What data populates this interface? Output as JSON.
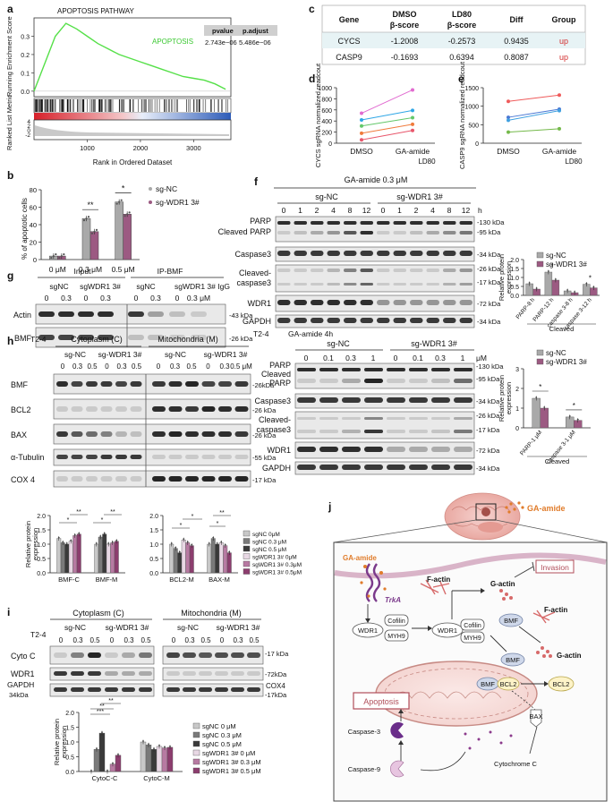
{
  "panels": {
    "a": {
      "label": "a",
      "title": "APOPTOSIS PATHWAY",
      "ylabel_top": "Running Enrichment Score",
      "ylabel_bottom": "Ranked List Metric",
      "xlabel": "Rank in Ordered Dataset",
      "series_name": "APOPTOSIS",
      "yticks_top": [
        "0.3",
        "0.2",
        "0.1",
        "0.0"
      ],
      "yticks_bottom": [
        "4",
        "2",
        "0",
        "-2"
      ],
      "xticks": [
        "1000",
        "2000",
        "3000"
      ],
      "table_headers": [
        "pvalue",
        "p.adjust"
      ],
      "table_values": [
        "2.743e−06",
        "5.486e−06"
      ],
      "chart_data": {
        "type": "line",
        "x": [
          0,
          200,
          400,
          600,
          800,
          1000,
          1200,
          1400,
          1600,
          1800,
          2000,
          2200,
          2400,
          2600,
          2800,
          3000,
          3200,
          3400,
          3600
        ],
        "y": [
          0.0,
          0.15,
          0.3,
          0.37,
          0.34,
          0.3,
          0.26,
          0.23,
          0.2,
          0.18,
          0.16,
          0.14,
          0.12,
          0.1,
          0.08,
          0.07,
          0.06,
          0.04,
          0.01
        ],
        "ylim": [
          -0.03,
          0.4
        ]
      }
    },
    "b": {
      "label": "b",
      "ylabel": "% of apoptotic cells",
      "legend": [
        "sg-NC",
        "sg-WDR1 3#"
      ],
      "colors": [
        "#a9a9a9",
        "#9c5a82"
      ],
      "chart_data": {
        "type": "bar",
        "categories": [
          "0 μM",
          "0.3 μM",
          "0.5 μM"
        ],
        "series": [
          {
            "name": "sg-NC",
            "values": [
              4,
              47,
              66
            ]
          },
          {
            "name": "sg-WDR1 3#",
            "values": [
              4,
              32,
              52
            ]
          }
        ],
        "ylim": [
          0,
          80
        ],
        "yticks": [
          "0",
          "20",
          "40",
          "60",
          "80"
        ],
        "significance": [
          "**",
          "*"
        ]
      }
    },
    "c": {
      "label": "c",
      "headers": [
        "Gene",
        "DMSO β-score",
        "LD80 β-score",
        "Diff",
        "Group"
      ],
      "rows": [
        [
          "CYCS",
          "-1.2008",
          "-0.2573",
          "0.9435",
          "up"
        ],
        [
          "CASP9",
          "-0.1693",
          "0.6394",
          "0.8087",
          "up"
        ]
      ]
    },
    "d": {
      "label": "d",
      "ylabel": "CYCS sgRNA normalized readcout",
      "categories": [
        "DMSO",
        "GA-amide"
      ],
      "group_label": "LD80",
      "chart_data": {
        "type": "line",
        "categories": [
          "DMSO",
          "GA-amide"
        ],
        "series": [
          {
            "values": [
              540,
              960
            ]
          },
          {
            "values": [
              420,
              590
            ]
          },
          {
            "values": [
              310,
              460
            ]
          },
          {
            "values": [
              180,
              340
            ]
          },
          {
            "values": [
              60,
              230
            ]
          }
        ],
        "ylim": [
          0,
          1000
        ],
        "yticks": [
          "0",
          "200",
          "400",
          "600",
          "800",
          "1000"
        ]
      }
    },
    "e": {
      "label": "e",
      "ylabel": "CASP9 sgRNA normalized readcout",
      "categories": [
        "DMSO",
        "GA-amide"
      ],
      "group_label": "LD80",
      "chart_data": {
        "type": "line",
        "categories": [
          "DMSO",
          "GA-amide"
        ],
        "series": [
          {
            "values": [
              1130,
              1300
            ]
          },
          {
            "values": [
              700,
              920
            ]
          },
          {
            "values": [
              620,
              880
            ]
          },
          {
            "values": [
              300,
              390
            ]
          }
        ],
        "ylim": [
          0,
          1500
        ],
        "yticks": [
          "0",
          "500",
          "1000",
          "1500"
        ]
      }
    },
    "f": {
      "label": "f",
      "treatment": "GA-amide 0.3 μM",
      "groups": [
        "sg-NC",
        "sg-WDR1 3#"
      ],
      "time_points": [
        "0",
        "1",
        "2",
        "4",
        "8",
        "12",
        "0",
        "1",
        "2",
        "4",
        "8",
        "12"
      ],
      "time_unit": "h",
      "rows": [
        "PARP",
        "Cleaved PARP",
        "Caspase3",
        "Cleaved-caspase3",
        "WDR1",
        "GAPDH"
      ],
      "kda": [
        "130 kDa",
        "95 kDa",
        "34 kDa",
        "26 kDa",
        "17 kDa",
        "72 kDa",
        "34 kDa"
      ],
      "ylabel": "Relative protein expression",
      "legend": [
        "sg-NC",
        "sg-WDR1 3#"
      ],
      "group_label": "Cleaved",
      "chart_data": {
        "type": "bar",
        "categories": [
          "PARP-8 h",
          "PARP-12 h",
          "caspase 3-8 h",
          "caspase 3-12 h"
        ],
        "series": [
          {
            "name": "sg-NC",
            "values": [
              0.65,
              1.3,
              0.25,
              0.62
            ]
          },
          {
            "name": "sg-WDR1 3#",
            "values": [
              0.35,
              0.85,
              0.15,
              0.42
            ]
          }
        ],
        "ylim": [
          0,
          2
        ],
        "yticks": [
          "0.0",
          "0.5",
          "1.0",
          "1.5",
          "2.0"
        ],
        "significance": [
          "*",
          "*"
        ]
      }
    },
    "f2": {
      "cell_line": "T2-4",
      "treatment": "GA-amide 4h",
      "groups": [
        "sg-NC",
        "sg-WDR1 3#"
      ],
      "doses": [
        "0",
        "0.1",
        "0.3",
        "1",
        "0",
        "0.1",
        "0.3",
        "1"
      ],
      "dose_unit": "μM",
      "rows": [
        "PARP",
        "Cleaved PARP",
        "Caspase3",
        "Cleaved-caspase3",
        "WDR1",
        "GAPDH"
      ],
      "kda": [
        "130 kDa",
        "95 kDa",
        "34 kDa",
        "26 kDa",
        "17 kDa",
        "72 kDa",
        "34 kDa"
      ],
      "ylabel": "Relative protein expression",
      "legend": [
        "sg-NC",
        "sg-WDR1 3#"
      ],
      "group_label": "Cleaved",
      "chart_data": {
        "type": "bar",
        "categories": [
          "PARP-1 μM",
          "caspase 3-1 μM"
        ],
        "series": [
          {
            "name": "sg-NC",
            "values": [
              1.5,
              0.55
            ]
          },
          {
            "name": "sg-WDR1 3#",
            "values": [
              1.0,
              0.38
            ]
          }
        ],
        "ylim": [
          0,
          3
        ],
        "yticks": [
          "0",
          "1",
          "2",
          "3"
        ],
        "significance": [
          "*",
          "*"
        ]
      }
    },
    "g": {
      "label": "g",
      "headers": [
        "Input",
        "IP-BMF"
      ],
      "lanes_groups": [
        "sgNC",
        "sgWDR1 3#",
        "sgNC",
        "sgWDR1 3# IgG"
      ],
      "doses": [
        "0",
        "0.3",
        "0",
        "0.3",
        "0",
        "0.3",
        "0",
        "0.3 μM"
      ],
      "rows": [
        "Actin",
        "BMF"
      ],
      "kda": [
        "43 kDa",
        "26 kDa"
      ]
    },
    "h": {
      "label": "h",
      "cell_line": "T2-4",
      "compartments": [
        "Cytoplasm (C)",
        "Mitochondria (M)"
      ],
      "groups": [
        "sg-NC",
        "sg-WDR1 3#",
        "sg-NC",
        "sg-WDR1 3#"
      ],
      "doses": [
        "0",
        "0.3",
        "0.5",
        "0",
        "0.3",
        "0.5",
        "0",
        "0.3",
        "0.5",
        "0",
        "0.3",
        "0.5 μM"
      ],
      "rows": [
        "BMF",
        "BCL2",
        "BAX",
        "α-Tubulin",
        "COX 4"
      ],
      "kda": [
        "26kDa",
        "26 kDa",
        "26 kDa",
        "55 kDa",
        "17 kDa"
      ],
      "ylabel": "Relative protein expression",
      "legend": [
        "sgNC 0μM",
        "sgNC 0.3 μM",
        "sgNC 0.5 μM",
        "sgWDR1 3# 0μM",
        "sgWDR1 3# 0.3μM",
        "sgWDR1 3# 0.5μM"
      ],
      "colors": [
        "#c8c8c8",
        "#7a7a7a",
        "#3a3a3a",
        "#e8d8e4",
        "#b77aa2",
        "#8c3d6e"
      ],
      "chart_data": [
        {
          "type": "bar",
          "categories": [
            "BMF-C",
            "BMF-M"
          ],
          "series": [
            {
              "name": "sgNC 0μM",
              "values": [
                1.2,
                1.0
              ]
            },
            {
              "name": "sgNC 0.3 μM",
              "values": [
                1.05,
                1.25
              ]
            },
            {
              "name": "sgNC 0.5 μM",
              "values": [
                1.0,
                1.35
              ]
            },
            {
              "name": "sgWDR1 3# 0μM",
              "values": [
                1.1,
                1.0
              ]
            },
            {
              "name": "sgWDR1 3# 0.3μM",
              "values": [
                1.3,
                1.05
              ]
            },
            {
              "name": "sgWDR1 3# 0.5μM",
              "values": [
                1.35,
                1.1
              ]
            }
          ],
          "ylim": [
            0,
            2
          ],
          "yticks": [
            "0.0",
            "0.5",
            "1.0",
            "1.5",
            "2.0"
          ]
        },
        {
          "type": "bar",
          "categories": [
            "BCL2-M",
            "BAX-M"
          ],
          "series": [
            {
              "name": "sgNC 0μM",
              "values": [
                1.0,
                1.0
              ]
            },
            {
              "name": "sgNC 0.3 μM",
              "values": [
                0.85,
                1.2
              ]
            },
            {
              "name": "sgNC 0.5 μM",
              "values": [
                0.7,
                1.0
              ]
            },
            {
              "name": "sgWDR1 3# 0μM",
              "values": [
                1.15,
                1.05
              ]
            },
            {
              "name": "sgWDR1 3# 0.3μM",
              "values": [
                1.05,
                0.95
              ]
            },
            {
              "name": "sgWDR1 3# 0.5μM",
              "values": [
                0.95,
                0.7
              ]
            }
          ],
          "ylim": [
            0,
            2
          ],
          "yticks": [
            "0.0",
            "0.5",
            "1.0",
            "1.5",
            "2.0"
          ]
        }
      ]
    },
    "i": {
      "label": "i",
      "cell_line": "T2-4",
      "compartments": [
        "Cytoplasm (C)",
        "Mitochondria (M)"
      ],
      "groups": [
        "sg-NC",
        "sg-WDR1 3#",
        "sg-NC",
        "sg-WDR1 3#"
      ],
      "doses": [
        "0",
        "0.3",
        "0.5",
        "0",
        "0.3",
        "0.5",
        "0",
        "0.3",
        "0.5",
        "0",
        "0.3",
        "0.5"
      ],
      "rows": [
        "Cyto C",
        "WDR1",
        "GAPDH"
      ],
      "right_labels": [
        "17 kDa",
        "72kDa",
        "COX4"
      ],
      "left_extra": "34kDa",
      "right_extra": "17kDa",
      "ylabel": "Relative protein expression",
      "legend": [
        "sgNC 0 μM",
        "sgNC 0.3 μM",
        "sgNC 0.5 μM",
        "sgWDR1 3# 0 μM",
        "sgWDR1 3# 0.3 μM",
        "sgWDR1 3# 0.5 μM"
      ],
      "chart_data": {
        "type": "bar",
        "categories": [
          "CytoC-C",
          "CytoC-M"
        ],
        "series": [
          {
            "name": "sgNC 0 μM",
            "values": [
              0.0,
              1.0
            ]
          },
          {
            "name": "sgNC 0.3 μM",
            "values": [
              0.75,
              0.9
            ]
          },
          {
            "name": "sgNC 0.5 μM",
            "values": [
              1.3,
              0.75
            ]
          },
          {
            "name": "sgWDR1 3# 0 μM",
            "values": [
              0.0,
              0.85
            ]
          },
          {
            "name": "sgWDR1 3# 0.3 μM",
            "values": [
              0.25,
              0.8
            ]
          },
          {
            "name": "sgWDR1 3# 0.5 μM",
            "values": [
              0.55,
              0.82
            ]
          }
        ],
        "ylim": [
          0,
          2
        ],
        "yticks": [
          "0.0",
          "0.5",
          "1.0",
          "1.5",
          "2.0"
        ],
        "significance": [
          "***",
          "**",
          "**"
        ]
      }
    },
    "j": {
      "label": "j",
      "drug": "GA-amide",
      "labels": [
        "GA-amide",
        "TrkA",
        "F-actin",
        "G-actin",
        "Invasion",
        "WDR1",
        "Cofilin",
        "MYH9",
        "WDR1",
        "Cofilin",
        "MYH9",
        "BMF",
        "F-actin",
        "BMF",
        "G-actin",
        "BMF",
        "BCL2",
        "BCL2",
        "BAX",
        "Apoptosis",
        "Caspase-3",
        "Caspase-9",
        "Cytochrome C"
      ]
    }
  }
}
